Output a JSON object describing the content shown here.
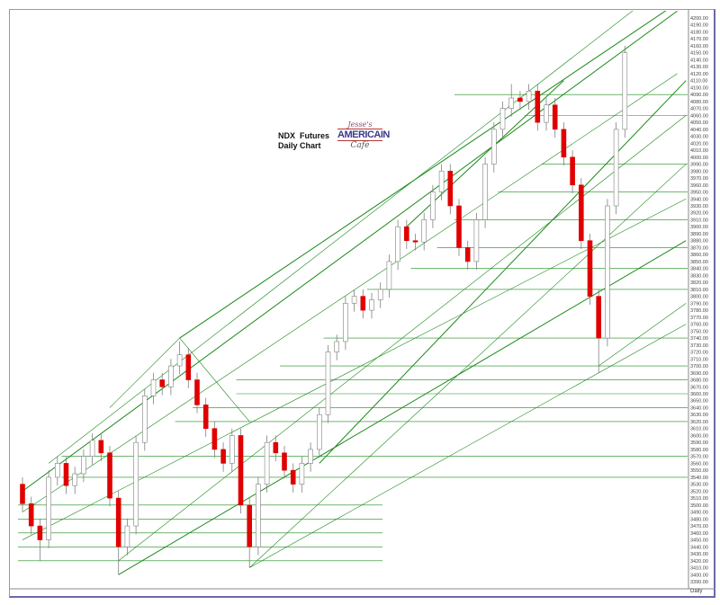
{
  "chart_data": {
    "type": "candlestick",
    "title": "NDX  Futures\nDaily Chart",
    "logo_text": [
      "Jesse's",
      "AMERICAIN",
      "Café"
    ],
    "period_label": "Daily",
    "ylim": [
      3390,
      4200
    ],
    "ytick_step": 10,
    "colors": {
      "down": "#e00000",
      "up": "#ffffff",
      "outline": "#808080",
      "trendline": "#1a8a1a"
    },
    "ohlc": [
      [
        3530,
        3540,
        3490,
        3502
      ],
      [
        3502,
        3512,
        3458,
        3470
      ],
      [
        3470,
        3480,
        3420,
        3450
      ],
      [
        3450,
        3550,
        3438,
        3540
      ],
      [
        3540,
        3570,
        3528,
        3560
      ],
      [
        3560,
        3570,
        3516,
        3528
      ],
      [
        3528,
        3555,
        3516,
        3545
      ],
      [
        3545,
        3580,
        3533,
        3570
      ],
      [
        3570,
        3603,
        3558,
        3593
      ],
      [
        3593,
        3603,
        3563,
        3575
      ],
      [
        3575,
        3585,
        3498,
        3510
      ],
      [
        3510,
        3520,
        3400,
        3440
      ],
      [
        3440,
        3480,
        3428,
        3470
      ],
      [
        3470,
        3600,
        3458,
        3590
      ],
      [
        3590,
        3667,
        3578,
        3657
      ],
      [
        3657,
        3690,
        3645,
        3680
      ],
      [
        3680,
        3690,
        3658,
        3670
      ],
      [
        3670,
        3710,
        3658,
        3700
      ],
      [
        3700,
        3735,
        3688,
        3716
      ],
      [
        3716,
        3726,
        3668,
        3680
      ],
      [
        3680,
        3690,
        3632,
        3644
      ],
      [
        3644,
        3654,
        3598,
        3610
      ],
      [
        3610,
        3620,
        3568,
        3580
      ],
      [
        3580,
        3590,
        3548,
        3560
      ],
      [
        3560,
        3610,
        3548,
        3600
      ],
      [
        3600,
        3610,
        3488,
        3500
      ],
      [
        3500,
        3510,
        3410,
        3440
      ],
      [
        3440,
        3540,
        3428,
        3530
      ],
      [
        3530,
        3600,
        3518,
        3590
      ],
      [
        3590,
        3600,
        3563,
        3575
      ],
      [
        3575,
        3585,
        3538,
        3550
      ],
      [
        3550,
        3560,
        3518,
        3530
      ],
      [
        3530,
        3570,
        3518,
        3560
      ],
      [
        3560,
        3590,
        3548,
        3580
      ],
      [
        3580,
        3640,
        3568,
        3630
      ],
      [
        3630,
        3730,
        3618,
        3720
      ],
      [
        3720,
        3745,
        3708,
        3735
      ],
      [
        3735,
        3800,
        3723,
        3790
      ],
      [
        3790,
        3810,
        3778,
        3800
      ],
      [
        3800,
        3810,
        3768,
        3780
      ],
      [
        3780,
        3805,
        3768,
        3795
      ],
      [
        3795,
        3820,
        3783,
        3810
      ],
      [
        3810,
        3860,
        3798,
        3850
      ],
      [
        3850,
        3910,
        3838,
        3900
      ],
      [
        3900,
        3910,
        3868,
        3880
      ],
      [
        3880,
        3890,
        3866,
        3878
      ],
      [
        3878,
        3920,
        3866,
        3910
      ],
      [
        3910,
        3960,
        3898,
        3950
      ],
      [
        3950,
        3990,
        3938,
        3980
      ],
      [
        3980,
        3990,
        3918,
        3930
      ],
      [
        3930,
        3940,
        3858,
        3870
      ],
      [
        3870,
        3880,
        3838,
        3850
      ],
      [
        3850,
        3920,
        3838,
        3910
      ],
      [
        3910,
        4000,
        3898,
        3990
      ],
      [
        3990,
        4050,
        3978,
        4040
      ],
      [
        4040,
        4080,
        4028,
        4070
      ],
      [
        4070,
        4105,
        4058,
        4085
      ],
      [
        4085,
        4095,
        4068,
        4080
      ],
      [
        4080,
        4105,
        4068,
        4095
      ],
      [
        4095,
        4105,
        4038,
        4050
      ],
      [
        4050,
        4085,
        4038,
        4075
      ],
      [
        4075,
        4085,
        4028,
        4040
      ],
      [
        4040,
        4050,
        3988,
        4000
      ],
      [
        4000,
        4010,
        3948,
        3960
      ],
      [
        3960,
        3970,
        3868,
        3880
      ],
      [
        3880,
        3890,
        3788,
        3800
      ],
      [
        3800,
        3810,
        3690,
        3740
      ],
      [
        3740,
        3940,
        3728,
        3930
      ],
      [
        3930,
        4050,
        3918,
        4040
      ],
      [
        4040,
        4160,
        4028,
        4150
      ]
    ],
    "horizontal_lines": [
      {
        "from": 0,
        "price": 3500
      },
      {
        "from": 0,
        "price": 3480
      },
      {
        "from": 0,
        "price": 3460
      },
      {
        "from": 0,
        "price": 3440
      },
      {
        "from": 0,
        "price": 3420
      },
      {
        "from": 50,
        "price": 4090
      },
      {
        "from": 58,
        "price": 4060
      },
      {
        "from": 60,
        "price": 3990
      },
      {
        "from": 55,
        "price": 3950
      },
      {
        "from": 50,
        "price": 3910
      },
      {
        "from": 48,
        "price": 3870
      },
      {
        "from": 45,
        "price": 3840
      },
      {
        "from": 40,
        "price": 3810
      },
      {
        "from": 35,
        "price": 3740
      },
      {
        "from": 30,
        "price": 3700
      },
      {
        "from": 25,
        "price": 3680
      },
      {
        "from": 25,
        "price": 3660
      },
      {
        "from": 20,
        "price": 3640
      },
      {
        "from": 18,
        "price": 3620
      },
      {
        "from": 5,
        "price": 3570
      },
      {
        "from": 5,
        "price": 3540
      }
    ],
    "trendlines": [
      [
        0,
        3520,
        75,
        4210
      ],
      [
        3,
        3560,
        75,
        4260
      ],
      [
        0,
        3490,
        75,
        4120
      ],
      [
        11,
        3400,
        76,
        3880
      ],
      [
        26,
        3410,
        76,
        3990
      ],
      [
        26,
        3410,
        76,
        3760
      ],
      [
        18,
        3740,
        76,
        4230
      ],
      [
        11,
        3420,
        76,
        4060
      ],
      [
        0,
        3450,
        76,
        3940
      ],
      [
        34,
        3560,
        76,
        4110
      ],
      [
        18,
        3740,
        26,
        3620
      ],
      [
        18,
        3740,
        10,
        3640
      ],
      [
        44,
        3900,
        62,
        4110
      ],
      [
        66,
        3700,
        76,
        3790
      ]
    ]
  }
}
